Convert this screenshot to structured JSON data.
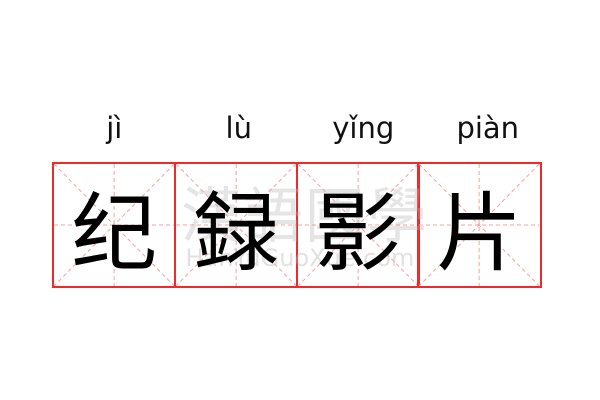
{
  "word": [
    {
      "pinyin": "jì",
      "char": "纪"
    },
    {
      "pinyin": "lù",
      "char": "録"
    },
    {
      "pinyin": "yǐng",
      "char": "影"
    },
    {
      "pinyin": "piàn",
      "char": "片"
    }
  ],
  "watermark": {
    "logo": "漢語國學",
    "site": "HanYuGuoXue.com"
  },
  "colors": {
    "grid_border": "#ee2b2b",
    "guide_lines": "#f5a0a0"
  }
}
